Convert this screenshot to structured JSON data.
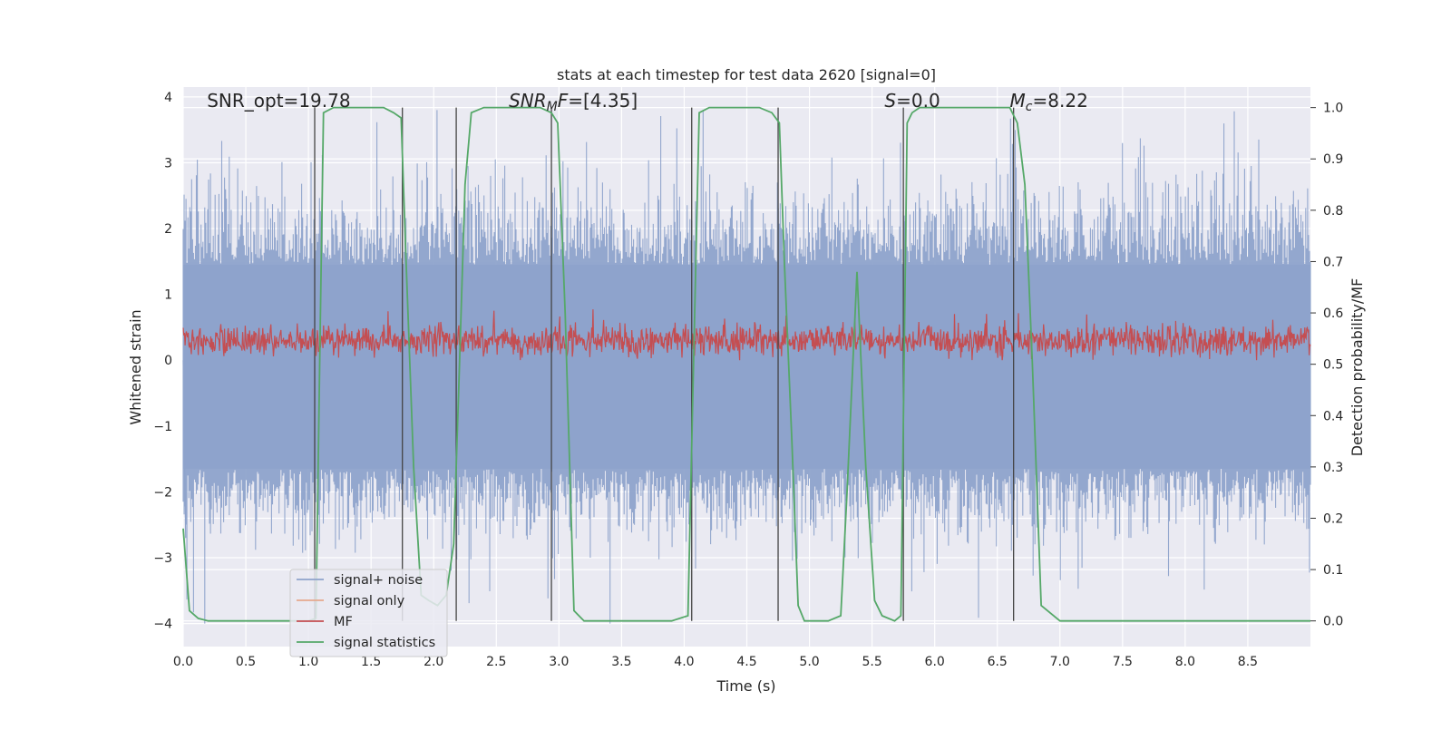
{
  "chart_data": {
    "type": "line",
    "title": "stats at each timestep for test data 2620 [signal=0]",
    "xlabel": "Time (s)",
    "ylabel": "Whitened strain",
    "y2label": "Detection probability/MF",
    "xlim": [
      0.0,
      9.0
    ],
    "ylim": [
      -4.35,
      4.15
    ],
    "y2lim": [
      -0.05,
      1.04
    ],
    "xticks": [
      "0.0",
      "0.5",
      "1.0",
      "1.5",
      "2.0",
      "2.5",
      "3.0",
      "3.5",
      "4.0",
      "4.5",
      "5.0",
      "5.5",
      "6.0",
      "6.5",
      "7.0",
      "7.5",
      "8.0",
      "8.5"
    ],
    "yticks": [
      "4",
      "3",
      "2",
      "1",
      "0",
      "−1",
      "−2",
      "−3",
      "−4"
    ],
    "y2ticks": [
      "1.0",
      "0.9",
      "0.8",
      "0.7",
      "0.6",
      "0.5",
      "0.4",
      "0.3",
      "0.2",
      "0.1",
      "0.0"
    ],
    "grid": true,
    "legend_position": "lower-left",
    "annotations": [
      {
        "id": "snr-opt",
        "text": "SNR_opt=19.78",
        "x": 0.19,
        "y": 3.82
      },
      {
        "id": "snr-mf",
        "text": "SNR_MF=[4.35]",
        "x": 2.6,
        "y": 3.82
      },
      {
        "id": "s-value",
        "text": "S=0.0",
        "x": 5.6,
        "y": 3.82
      },
      {
        "id": "mc-value",
        "text": "M_c=8.22",
        "x": 6.6,
        "y": 3.82
      }
    ],
    "colors": {
      "signal_noise": "#8ea3cb",
      "signal_only": "#e6a98e",
      "mf": "#c44e52",
      "signal_statistics": "#55a868",
      "vlines": "#444444",
      "background": "#eaeaf2",
      "grid": "#ffffff"
    },
    "series": [
      {
        "name": "signal+ noise",
        "description_values": "whitened strain noise, mean 0, sd 1, spikes to about +3.8 / -4",
        "band": [
          -1.65,
          1.45
        ],
        "extreme_range": [
          -4.0,
          3.8
        ]
      },
      {
        "name": "signal only",
        "values": []
      },
      {
        "name": "MF",
        "band": [
          0.05,
          0.6
        ],
        "center": 0.3
      },
      {
        "name": "signal statistics",
        "axis": "right",
        "x": [
          0.0,
          0.05,
          0.12,
          0.2,
          0.3,
          1.0,
          1.06,
          1.09,
          1.12,
          1.2,
          1.6,
          1.68,
          1.74,
          1.78,
          1.84,
          1.9,
          1.96,
          2.03,
          2.1,
          2.16,
          2.2,
          2.25,
          2.3,
          2.4,
          2.85,
          2.94,
          2.99,
          3.05,
          3.12,
          3.2,
          3.9,
          4.03,
          4.07,
          4.12,
          4.2,
          4.6,
          4.7,
          4.76,
          4.8,
          4.86,
          4.91,
          4.96,
          5.05,
          5.15,
          5.25,
          5.3,
          5.38,
          5.45,
          5.52,
          5.58,
          5.68,
          5.73,
          5.78,
          5.82,
          5.88,
          6.5,
          6.6,
          6.66,
          6.72,
          6.78,
          6.85,
          7.0,
          9.0
        ],
        "values": [
          0.18,
          0.02,
          0.005,
          0.0,
          0.0,
          0.0,
          0.005,
          0.5,
          0.99,
          1.0,
          1.0,
          0.99,
          0.98,
          0.7,
          0.3,
          0.05,
          0.04,
          0.03,
          0.05,
          0.15,
          0.45,
          0.85,
          0.99,
          1.0,
          1.0,
          0.99,
          0.97,
          0.6,
          0.02,
          0.0,
          0.0,
          0.01,
          0.45,
          0.99,
          1.0,
          1.0,
          0.99,
          0.97,
          0.7,
          0.35,
          0.03,
          0.0,
          0.0,
          0.0,
          0.01,
          0.25,
          0.68,
          0.3,
          0.04,
          0.01,
          0.0,
          0.01,
          0.97,
          0.99,
          1.0,
          1.0,
          1.0,
          0.97,
          0.85,
          0.5,
          0.03,
          0.0,
          0.0
        ]
      }
    ],
    "vlines_x": [
      1.05,
      1.75,
      2.18,
      2.94,
      4.06,
      4.75,
      5.75,
      6.63
    ],
    "vlines_range": [
      0.0,
      1.0
    ]
  },
  "legend": {
    "items": [
      {
        "label": "signal+ noise",
        "color": "#8ea3cb"
      },
      {
        "label": "signal only",
        "color": "#e6a98e"
      },
      {
        "label": "MF",
        "color": "#c44e52"
      },
      {
        "label": "signal statistics",
        "color": "#55a868"
      }
    ]
  }
}
